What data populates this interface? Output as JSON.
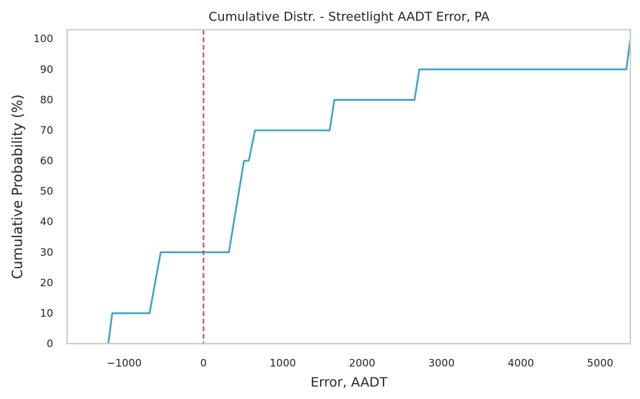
{
  "chart_data": {
    "type": "line",
    "title": "Cumulative Distr. - Streetlight AADT Error, PA",
    "xlabel": "Error, AADT",
    "ylabel": "Cumulative Probability (%)",
    "xlim": [
      -1720,
      5380
    ],
    "ylim": [
      0,
      103
    ],
    "xticks": [
      -1000,
      0,
      1000,
      2000,
      3000,
      4000,
      5000
    ],
    "xtick_labels": [
      "−1000",
      "0",
      "1000",
      "2000",
      "3000",
      "4000",
      "5000"
    ],
    "yticks": [
      0,
      10,
      20,
      30,
      40,
      50,
      60,
      70,
      80,
      90,
      100
    ],
    "ytick_labels": [
      "0",
      "10",
      "20",
      "30",
      "40",
      "50",
      "60",
      "70",
      "80",
      "90",
      "100"
    ],
    "grid": false,
    "legend": "none",
    "series": [
      {
        "color": "#3ba4c9",
        "x": [
          -1200,
          -1150,
          -680,
          -540,
          320,
          510,
          570,
          650,
          1590,
          1650,
          2660,
          2720,
          5330,
          5380
        ],
        "y": [
          0,
          10,
          10,
          30,
          30,
          60,
          60,
          70,
          70,
          80,
          80,
          90,
          90,
          100
        ]
      }
    ],
    "reference_line": {
      "axis": "x",
      "value": 0,
      "color": "#c44e52",
      "style": "dashed"
    }
  }
}
